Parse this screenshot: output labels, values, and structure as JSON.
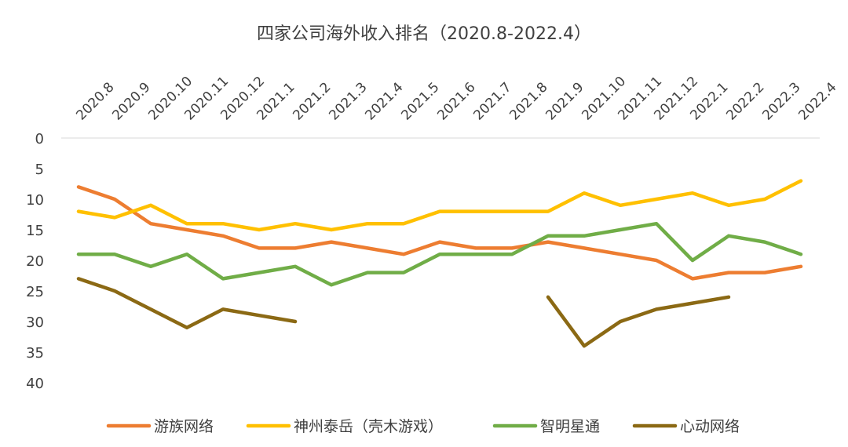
{
  "chart_data": {
    "type": "line",
    "title": "四家公司海外收入排名（2020.8-2022.4）",
    "categories": [
      "2020.8",
      "2020.9",
      "2020.10",
      "2020.11",
      "2020.12",
      "2021.1",
      "2021.2",
      "2021.3",
      "2021.4",
      "2021.5",
      "2021.6",
      "2021.7",
      "2021.8",
      "2021.9",
      "2021.10",
      "2021.11",
      "2021.12",
      "2022.1",
      "2022.2",
      "2022.3",
      "2022.4"
    ],
    "yticks": [
      "0",
      "5",
      "10",
      "15",
      "20",
      "25",
      "30",
      "35",
      "40"
    ],
    "ylim": [
      0,
      40
    ],
    "y_inverted": true,
    "xlabel": "",
    "ylabel": "",
    "legend_position": "bottom",
    "series": [
      {
        "name": "游族网络",
        "color": "#ED7D31",
        "values": [
          8,
          10,
          14,
          15,
          16,
          18,
          18,
          17,
          18,
          19,
          17,
          18,
          18,
          17,
          18,
          19,
          20,
          23,
          22,
          22,
          21
        ]
      },
      {
        "name": "神州泰岳（壳木游戏）",
        "color": "#FFC000",
        "values": [
          12,
          13,
          11,
          14,
          14,
          15,
          14,
          15,
          14,
          14,
          12,
          12,
          12,
          12,
          9,
          11,
          10,
          9,
          11,
          10,
          7
        ]
      },
      {
        "name": "智明星通",
        "color": "#70AD47",
        "values": [
          19,
          19,
          21,
          19,
          23,
          22,
          21,
          24,
          22,
          22,
          19,
          19,
          19,
          16,
          16,
          15,
          14,
          20,
          16,
          17,
          19
        ]
      },
      {
        "name": "心动网络",
        "color": "#8B6914",
        "values": [
          23,
          25,
          28,
          31,
          28,
          29,
          30,
          null,
          null,
          null,
          null,
          null,
          null,
          26,
          34,
          30,
          28,
          27,
          26,
          null,
          null
        ]
      }
    ]
  }
}
